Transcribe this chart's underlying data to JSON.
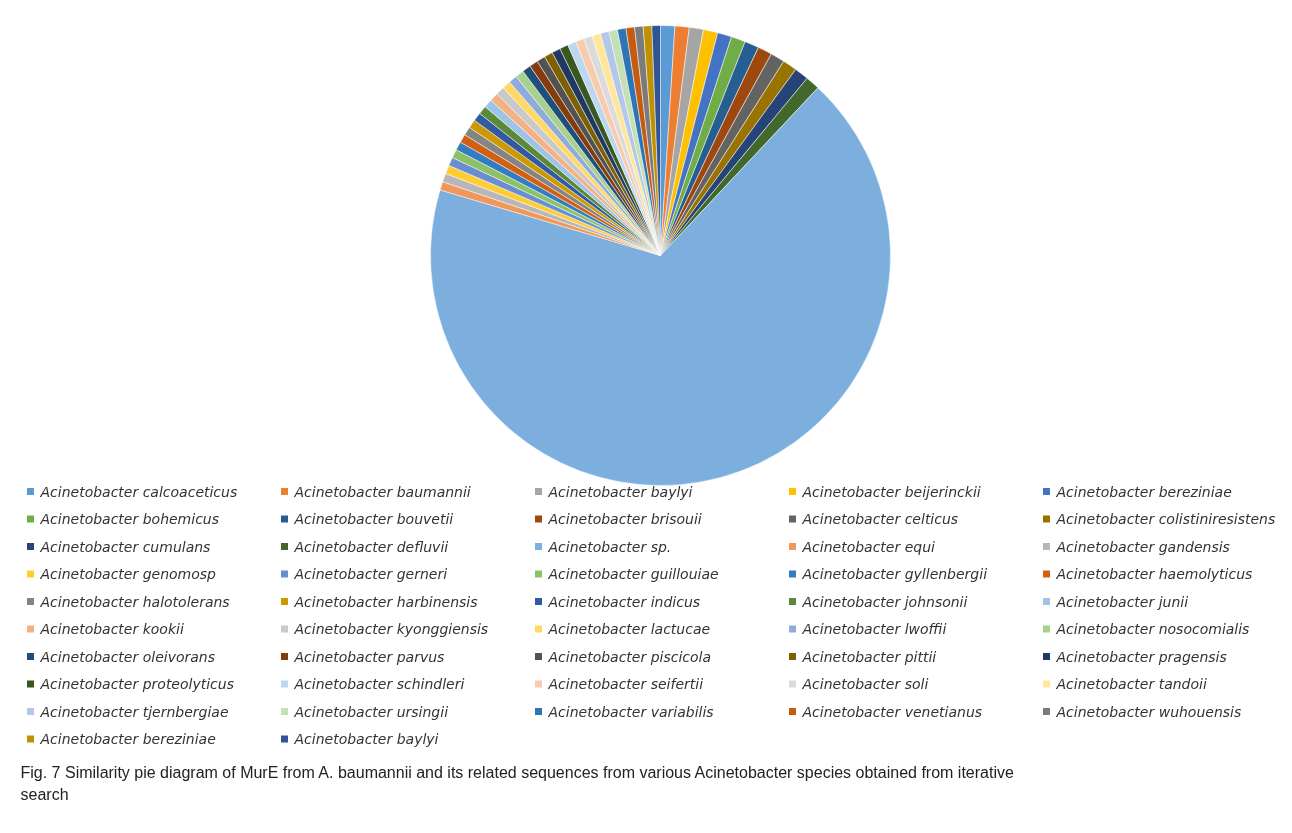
{
  "chart_data": {
    "type": "pie",
    "legend": "bottom",
    "categories": [
      "Acinetobacter calcoaceticus",
      "Acinetobacter baumannii",
      "Acinetobacter baylyi",
      "Acinetobacter beijerinckii",
      "Acinetobacter bereziniae",
      "Acinetobacter bohemicus",
      "Acinetobacter bouvetii",
      "Acinetobacter brisouii",
      "Acinetobacter celticus",
      "Acinetobacter colistiniresistens",
      "Acinetobacter cumulans",
      "Acinetobacter defluvii",
      "Acinetobacter sp.",
      "Acinetobacter equi",
      "Acinetobacter gandensis",
      "Acinetobacter genomosp",
      "Acinetobacter gerneri",
      "Acinetobacter guillouiae",
      "Acinetobacter gyllenbergii",
      "Acinetobacter haemolyticus",
      "Acinetobacter halotolerans",
      "Acinetobacter harbinensis",
      "Acinetobacter indicus",
      "Acinetobacter johnsonii",
      "Acinetobacter junii",
      "Acinetobacter kookii",
      "Acinetobacter kyonggiensis",
      "Acinetobacter lactucae",
      "Acinetobacter lwoffii",
      "Acinetobacter nosocomialis",
      "Acinetobacter oleivorans",
      "Acinetobacter parvus",
      "Acinetobacter piscicola",
      "Acinetobacter pittii",
      "Acinetobacter pragensis",
      "Acinetobacter proteolyticus",
      "Acinetobacter schindleri",
      "Acinetobacter seifertii",
      "Acinetobacter soli",
      "Acinetobacter tandoii",
      "Acinetobacter tjernbergiae",
      "Acinetobacter ursingii",
      "Acinetobacter variabilis",
      "Acinetobacter venetianus",
      "Acinetobacter wuhouensis",
      "Acinetobacter bereziniae",
      "Acinetobacter baylyi"
    ],
    "values": [
      1,
      1,
      1,
      1,
      1,
      1,
      1,
      1,
      1,
      1,
      1,
      1,
      67.6,
      0.6,
      0.6,
      0.6,
      0.6,
      0.6,
      0.6,
      0.6,
      0.6,
      0.6,
      0.6,
      0.6,
      0.6,
      0.6,
      0.6,
      0.6,
      0.6,
      0.6,
      0.6,
      0.6,
      0.6,
      0.6,
      0.6,
      0.6,
      0.6,
      0.6,
      0.6,
      0.6,
      0.6,
      0.6,
      0.6,
      0.6,
      0.6,
      0.6,
      0.6
    ],
    "colors": [
      "#5b9bd5",
      "#ed7d31",
      "#a5a5a5",
      "#ffc000",
      "#4472c4",
      "#70ad47",
      "#255e91",
      "#9e480e",
      "#636363",
      "#997300",
      "#264478",
      "#43682b",
      "#7cafdd",
      "#f1975a",
      "#b7b7b7",
      "#ffcd33",
      "#698ed0",
      "#8cc168",
      "#327dc2",
      "#d26012",
      "#848484",
      "#cc9a00",
      "#335aa1",
      "#5a8a39",
      "#9dc3e6",
      "#f4b183",
      "#c9c9c9",
      "#ffd966",
      "#8faadc",
      "#a9d18e",
      "#1e4e79",
      "#843c0c",
      "#525252",
      "#7f6000",
      "#203864",
      "#385723",
      "#bdd7ee",
      "#f8cbad",
      "#dbdbdb",
      "#ffe699",
      "#b4c7e7",
      "#c5e0b4",
      "#2e75b6",
      "#c55a11",
      "#7b7b7b",
      "#bf9000",
      "#2f5597"
    ],
    "annotations": [
      "Fig. 7 Similarity pie diagram of MurE from A. baumannii and its related sequences from various Acinetobacter species obtained from iterative search"
    ]
  }
}
